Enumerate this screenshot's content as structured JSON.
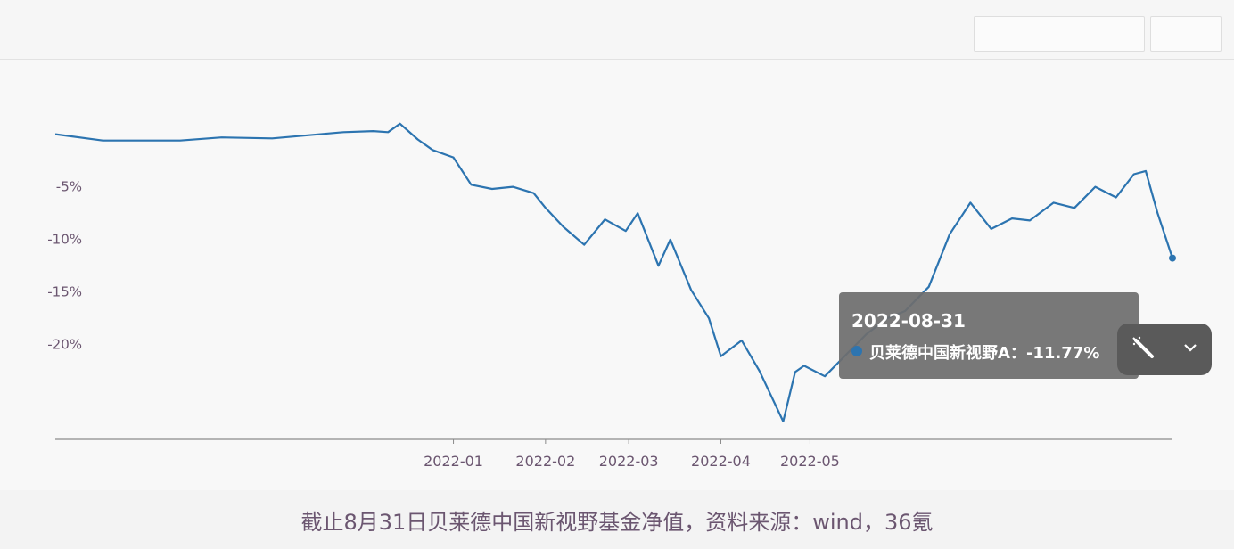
{
  "caption": "截止8月31日贝莱德中国新视野基金净值，资料来源：wind，36氪",
  "tooltip": {
    "date": "2022-08-31",
    "series_label": "贝莱德中国新视野A：",
    "value_text": "-11.77%"
  },
  "icons": {
    "edit": "magic-wand-icon",
    "expand": "chevron-down-icon"
  },
  "chart_data": {
    "type": "line",
    "xlabel": "",
    "ylabel": "",
    "y_tick_labels": [
      "-5%",
      "-10%",
      "-15%",
      "-20%"
    ],
    "y_ticks": [
      -5,
      -10,
      -15,
      -20
    ],
    "ylim": [
      -29,
      2
    ],
    "x_tick_labels": [
      "2022-01",
      "2022-02",
      "2022-03",
      "2022-04",
      "2022-05"
    ],
    "x_tick_dates": [
      "2022-01-01",
      "2022-02-01",
      "2022-03-01",
      "2022-04-01",
      "2022-05-01"
    ],
    "xlim": [
      "2021-08-20",
      "2022-08-31"
    ],
    "grid": false,
    "legend": "none",
    "series": [
      {
        "color": "#2c74b0",
        "x": [
          "2021-08-20",
          "2021-09-05",
          "2021-10-01",
          "2021-10-15",
          "2021-11-01",
          "2021-11-25",
          "2021-12-05",
          "2021-12-10",
          "2021-12-14",
          "2021-12-20",
          "2021-12-25",
          "2022-01-01",
          "2022-01-07",
          "2022-01-14",
          "2022-01-21",
          "2022-01-28",
          "2022-02-01",
          "2022-02-07",
          "2022-02-14",
          "2022-02-21",
          "2022-02-28",
          "2022-03-04",
          "2022-03-11",
          "2022-03-15",
          "2022-03-22",
          "2022-03-28",
          "2022-04-01",
          "2022-04-08",
          "2022-04-14",
          "2022-04-22",
          "2022-04-26",
          "2022-04-29",
          "2022-05-06",
          "2022-05-13",
          "2022-05-20",
          "2022-05-27",
          "2022-06-02",
          "2022-06-10",
          "2022-06-17",
          "2022-06-24",
          "2022-07-01",
          "2022-07-08",
          "2022-07-14",
          "2022-07-22",
          "2022-07-29",
          "2022-08-05",
          "2022-08-12",
          "2022-08-18",
          "2022-08-22",
          "2022-08-26",
          "2022-08-31"
        ],
        "y": [
          0.0,
          -0.6,
          -0.6,
          -0.3,
          -0.4,
          0.2,
          0.3,
          0.2,
          1.0,
          -0.5,
          -1.5,
          -2.2,
          -4.8,
          -5.2,
          -5.0,
          -5.6,
          -7.0,
          -8.8,
          -10.5,
          -8.1,
          -9.2,
          -7.5,
          -12.5,
          -10.0,
          -14.8,
          -17.5,
          -21.1,
          -19.6,
          -22.5,
          -27.3,
          -22.6,
          -22.0,
          -23.0,
          -21.0,
          -19.0,
          -17.5,
          -16.8,
          -14.5,
          -9.5,
          -6.5,
          -9.0,
          -8.0,
          -8.2,
          -6.5,
          -7.0,
          -5.0,
          -6.0,
          -3.8,
          -3.5,
          -7.5,
          -11.77
        ]
      }
    ]
  }
}
